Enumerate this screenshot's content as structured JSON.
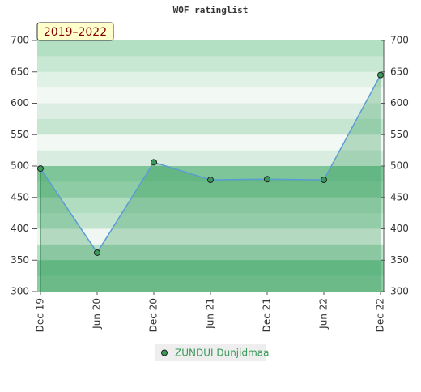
{
  "chart_data": {
    "type": "line",
    "title": "WOF ratinglist",
    "badge": "2019–2022",
    "categories": [
      "Dec 19",
      "Jun 20",
      "Dec 20",
      "Jun 21",
      "Dec 21",
      "Jun 22",
      "Dec 22"
    ],
    "series": [
      {
        "name": "ZUNDUI Dunjidmaa",
        "color": "#5b9bd5",
        "marker_color": "#3a9a5a",
        "values": [
          496,
          362,
          506,
          478,
          479,
          478,
          645
        ]
      }
    ],
    "ylim": [
      300,
      700
    ],
    "yticks": [
      300,
      350,
      400,
      450,
      500,
      550,
      600,
      650,
      700
    ],
    "right_axis": true
  }
}
